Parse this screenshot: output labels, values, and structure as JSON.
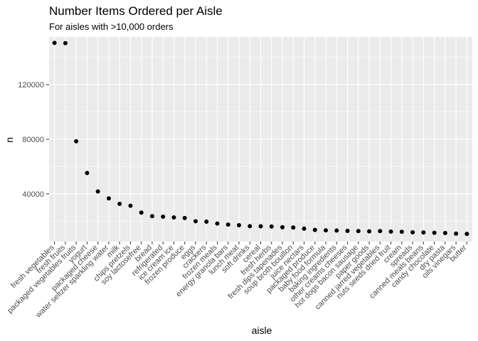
{
  "colors": {
    "panel": "#ebebeb",
    "grid_major": "#ffffff",
    "point": "#000000"
  },
  "chart_data": {
    "type": "scatter",
    "title": "Number Items Ordered per Aisle",
    "subtitle": "For aisles with >10,000 orders",
    "xlabel": "aisle",
    "ylabel": "n",
    "ylim": [
      5000,
      155000
    ],
    "yticks": [
      40000,
      80000,
      120000
    ],
    "grid": true,
    "legend": "none",
    "categories": [
      "fresh vegetables",
      "fresh fruits",
      "packaged vegetables fruits",
      "yogurt",
      "packaged cheese",
      "water seltzer sparkling water",
      "milk",
      "chips pretzels",
      "soy lactosefree",
      "bread",
      "refrigerated",
      "ice cream ice",
      "frozen produce",
      "eggs",
      "crackers",
      "frozen meals",
      "energy granola bars",
      "lunch meat",
      "soft drinks",
      "cereal",
      "fresh herbs",
      "fresh dips tapenades",
      "soup broth bouillon",
      "juice nectars",
      "packaged produce",
      "baby food formula",
      "baking ingredients",
      "other creams cheeses",
      "hot dogs bacon sausage",
      "paper goods",
      "canned jarred vegetables",
      "nuts seeds dried fruit",
      "cream",
      "spreads",
      "canned meals beans",
      "candy chocolate",
      "dry pasta",
      "oils vinegars",
      "butter"
    ],
    "values": [
      150609,
      150473,
      78493,
      55240,
      41699,
      36617,
      32644,
      31269,
      26240,
      23635,
      23228,
      22676,
      22231,
      19875,
      19592,
      18221,
      17449,
      16957,
      16279,
      16201,
      16000,
      15503,
      15307,
      14467,
      13500,
      13198,
      13088,
      12820,
      12700,
      12500,
      12679,
      12300,
      12150,
      11800,
      11650,
      11453,
      11250,
      10800,
      10575
    ]
  }
}
